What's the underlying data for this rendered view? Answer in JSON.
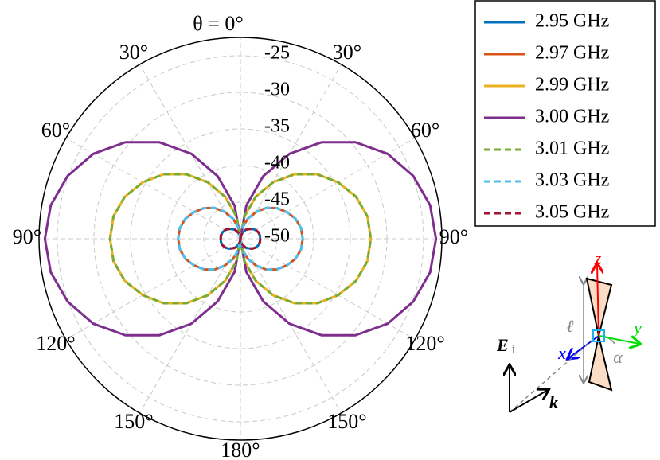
{
  "chart_data": {
    "type": "polar",
    "theta": [
      0,
      10,
      20,
      30,
      40,
      50,
      60,
      70,
      80,
      90,
      100,
      110,
      120,
      130,
      140,
      150,
      160,
      170,
      180,
      190,
      200,
      210,
      220,
      230,
      240,
      250,
      260,
      270,
      280,
      290,
      300,
      310,
      320,
      330,
      340,
      350,
      360
    ],
    "rlim": [
      -50,
      -22.5
    ],
    "rticks": [
      -50,
      -45,
      -40,
      -35,
      -30,
      -25
    ],
    "thetaticks": [
      {
        "value": 0,
        "label": "θ = 0°"
      },
      {
        "value": 30,
        "label": "30°"
      },
      {
        "value": 60,
        "label": "60°"
      },
      {
        "value": 90,
        "label": "90°"
      },
      {
        "value": 120,
        "label": "120°"
      },
      {
        "value": 150,
        "label": "150°"
      },
      {
        "value": 180,
        "label": "180°"
      },
      {
        "value": 210,
        "label": "150°"
      },
      {
        "value": 240,
        "label": "120°"
      },
      {
        "value": 270,
        "label": "90°"
      },
      {
        "value": 300,
        "label": "60°"
      },
      {
        "value": 330,
        "label": "30°"
      }
    ],
    "grid": true,
    "legend": "outside-upper-right",
    "series": [
      {
        "name": "2.95 GHz",
        "color": "#0072bd",
        "dashed": false,
        "values": [
          -50,
          -49.5,
          -49.1,
          -48.6,
          -48.3,
          -47.9,
          -47.6,
          -47.4,
          -47.3,
          -47.3,
          -47.3,
          -47.4,
          -47.6,
          -47.9,
          -48.3,
          -48.6,
          -49.1,
          -49.5,
          -50,
          -49.5,
          -49.1,
          -48.6,
          -48.3,
          -47.9,
          -47.6,
          -47.4,
          -47.3,
          -47.3,
          -47.3,
          -47.4,
          -47.6,
          -47.9,
          -48.3,
          -48.6,
          -49.1,
          -49.5,
          -50
        ]
      },
      {
        "name": "2.97 GHz",
        "color": "#d95319",
        "dashed": false,
        "values": [
          -50,
          -48.5,
          -47.1,
          -45.8,
          -44.5,
          -43.5,
          -42.7,
          -42.0,
          -41.6,
          -41.5,
          -41.6,
          -42.0,
          -42.7,
          -43.5,
          -44.5,
          -45.8,
          -47.1,
          -48.5,
          -50,
          -48.5,
          -47.1,
          -45.8,
          -44.5,
          -43.5,
          -42.7,
          -42.0,
          -41.6,
          -41.5,
          -41.6,
          -42.0,
          -42.7,
          -43.5,
          -44.5,
          -45.8,
          -47.1,
          -48.5,
          -50
        ]
      },
      {
        "name": "2.99 GHz",
        "color": "#edb120",
        "dashed": false,
        "values": [
          -50,
          -46.9,
          -43.9,
          -41.1,
          -38.5,
          -36.3,
          -34.6,
          -33.2,
          -32.4,
          -32.2,
          -32.4,
          -33.2,
          -34.6,
          -36.3,
          -38.5,
          -41.1,
          -43.9,
          -46.9,
          -50,
          -46.9,
          -43.9,
          -41.1,
          -38.5,
          -36.3,
          -34.6,
          -33.2,
          -32.4,
          -32.2,
          -32.4,
          -33.2,
          -34.6,
          -36.3,
          -38.5,
          -41.1,
          -43.9,
          -46.9,
          -50
        ]
      },
      {
        "name": "3.00 GHz",
        "color": "#7e2f8e",
        "dashed": false,
        "values": [
          -50,
          -45.4,
          -40.9,
          -36.6,
          -32.8,
          -29.5,
          -26.8,
          -24.9,
          -23.7,
          -23.3,
          -23.7,
          -24.9,
          -26.8,
          -29.5,
          -32.8,
          -36.6,
          -40.9,
          -45.4,
          -50,
          -45.4,
          -40.9,
          -36.6,
          -32.8,
          -29.5,
          -26.8,
          -24.9,
          -23.7,
          -23.3,
          -23.7,
          -24.9,
          -26.8,
          -29.5,
          -32.8,
          -36.6,
          -40.9,
          -45.4,
          -50
        ]
      },
      {
        "name": "3.01 GHz",
        "color": "#77ac30",
        "dashed": true,
        "values": [
          -50,
          -46.9,
          -43.9,
          -41.1,
          -38.5,
          -36.3,
          -34.6,
          -33.2,
          -32.4,
          -32.2,
          -32.4,
          -33.2,
          -34.6,
          -36.3,
          -38.5,
          -41.1,
          -43.9,
          -46.9,
          -50,
          -46.9,
          -43.9,
          -41.1,
          -38.5,
          -36.3,
          -34.6,
          -33.2,
          -32.4,
          -32.2,
          -32.4,
          -33.2,
          -34.6,
          -36.3,
          -38.5,
          -41.1,
          -43.9,
          -46.9,
          -50
        ]
      },
      {
        "name": "3.03 GHz",
        "color": "#4dbeee",
        "dashed": true,
        "values": [
          -50,
          -48.5,
          -47.1,
          -45.8,
          -44.5,
          -43.5,
          -42.7,
          -42.0,
          -41.6,
          -41.5,
          -41.6,
          -42.0,
          -42.7,
          -43.5,
          -44.5,
          -45.8,
          -47.1,
          -48.5,
          -50,
          -48.5,
          -47.1,
          -45.8,
          -44.5,
          -43.5,
          -42.7,
          -42.0,
          -41.6,
          -41.5,
          -41.6,
          -42.0,
          -42.7,
          -43.5,
          -44.5,
          -45.8,
          -47.1,
          -48.5,
          -50
        ]
      },
      {
        "name": "3.05 GHz",
        "color": "#a2142f",
        "dashed": true,
        "values": [
          -50,
          -49.5,
          -49.1,
          -48.6,
          -48.3,
          -47.9,
          -47.6,
          -47.4,
          -47.3,
          -47.3,
          -47.3,
          -47.4,
          -47.6,
          -47.9,
          -48.3,
          -48.6,
          -49.1,
          -49.5,
          -50,
          -49.5,
          -49.1,
          -48.6,
          -48.3,
          -47.9,
          -47.6,
          -47.4,
          -47.3,
          -47.3,
          -47.3,
          -47.4,
          -47.6,
          -47.9,
          -48.3,
          -48.6,
          -49.1,
          -49.5,
          -50
        ]
      }
    ]
  },
  "inset": {
    "z": "z",
    "y": "y",
    "x": "x",
    "length": "ℓ",
    "angle": "α",
    "field": "E",
    "field_sub": "i",
    "wave": "k"
  }
}
